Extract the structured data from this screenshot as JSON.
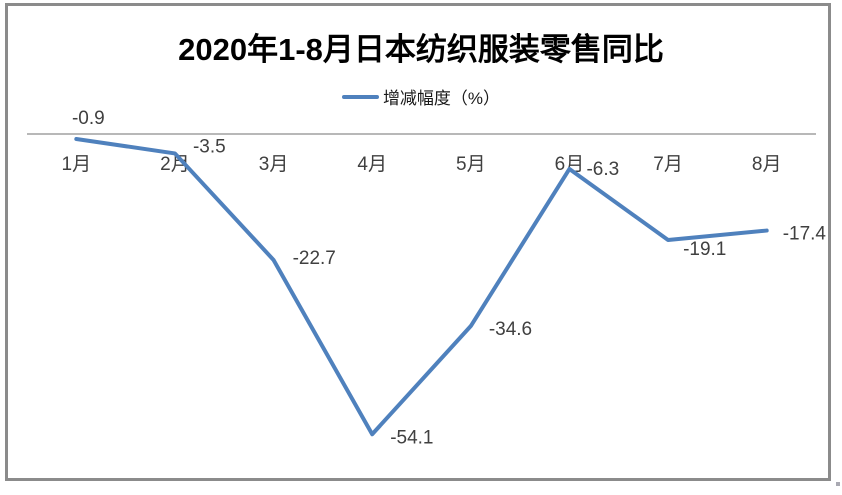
{
  "chart": {
    "title": "2020年1-8月日本纺织服装零售同比",
    "legend_label": "增减幅度（%）"
  },
  "chart_data": {
    "type": "line",
    "title": "2020年1-8月日本纺织服装零售同比",
    "categories": [
      "1月",
      "2月",
      "3月",
      "4月",
      "5月",
      "6月",
      "7月",
      "8月"
    ],
    "series": [
      {
        "name": "增减幅度（%）",
        "values": [
          -0.9,
          -3.5,
          -22.7,
          -54.1,
          -34.6,
          -6.3,
          -19.1,
          -17.4
        ]
      }
    ],
    "data_labels": [
      "-0.9",
      "-3.5",
      "-22.7",
      "-54.1",
      "-34.6",
      "-6.3",
      "-19.1",
      "-17.4"
    ],
    "xlabel": "",
    "ylabel": "",
    "ylim": [
      -60,
      0
    ],
    "grid": false,
    "legend_position": "top",
    "zero_axis_visible": true
  },
  "colors": {
    "line": "#4F81BD",
    "axis_line": "#a0a0a0",
    "frame_border": "#8b8b8b",
    "title_text": "#000000",
    "label_text": "#404040"
  }
}
